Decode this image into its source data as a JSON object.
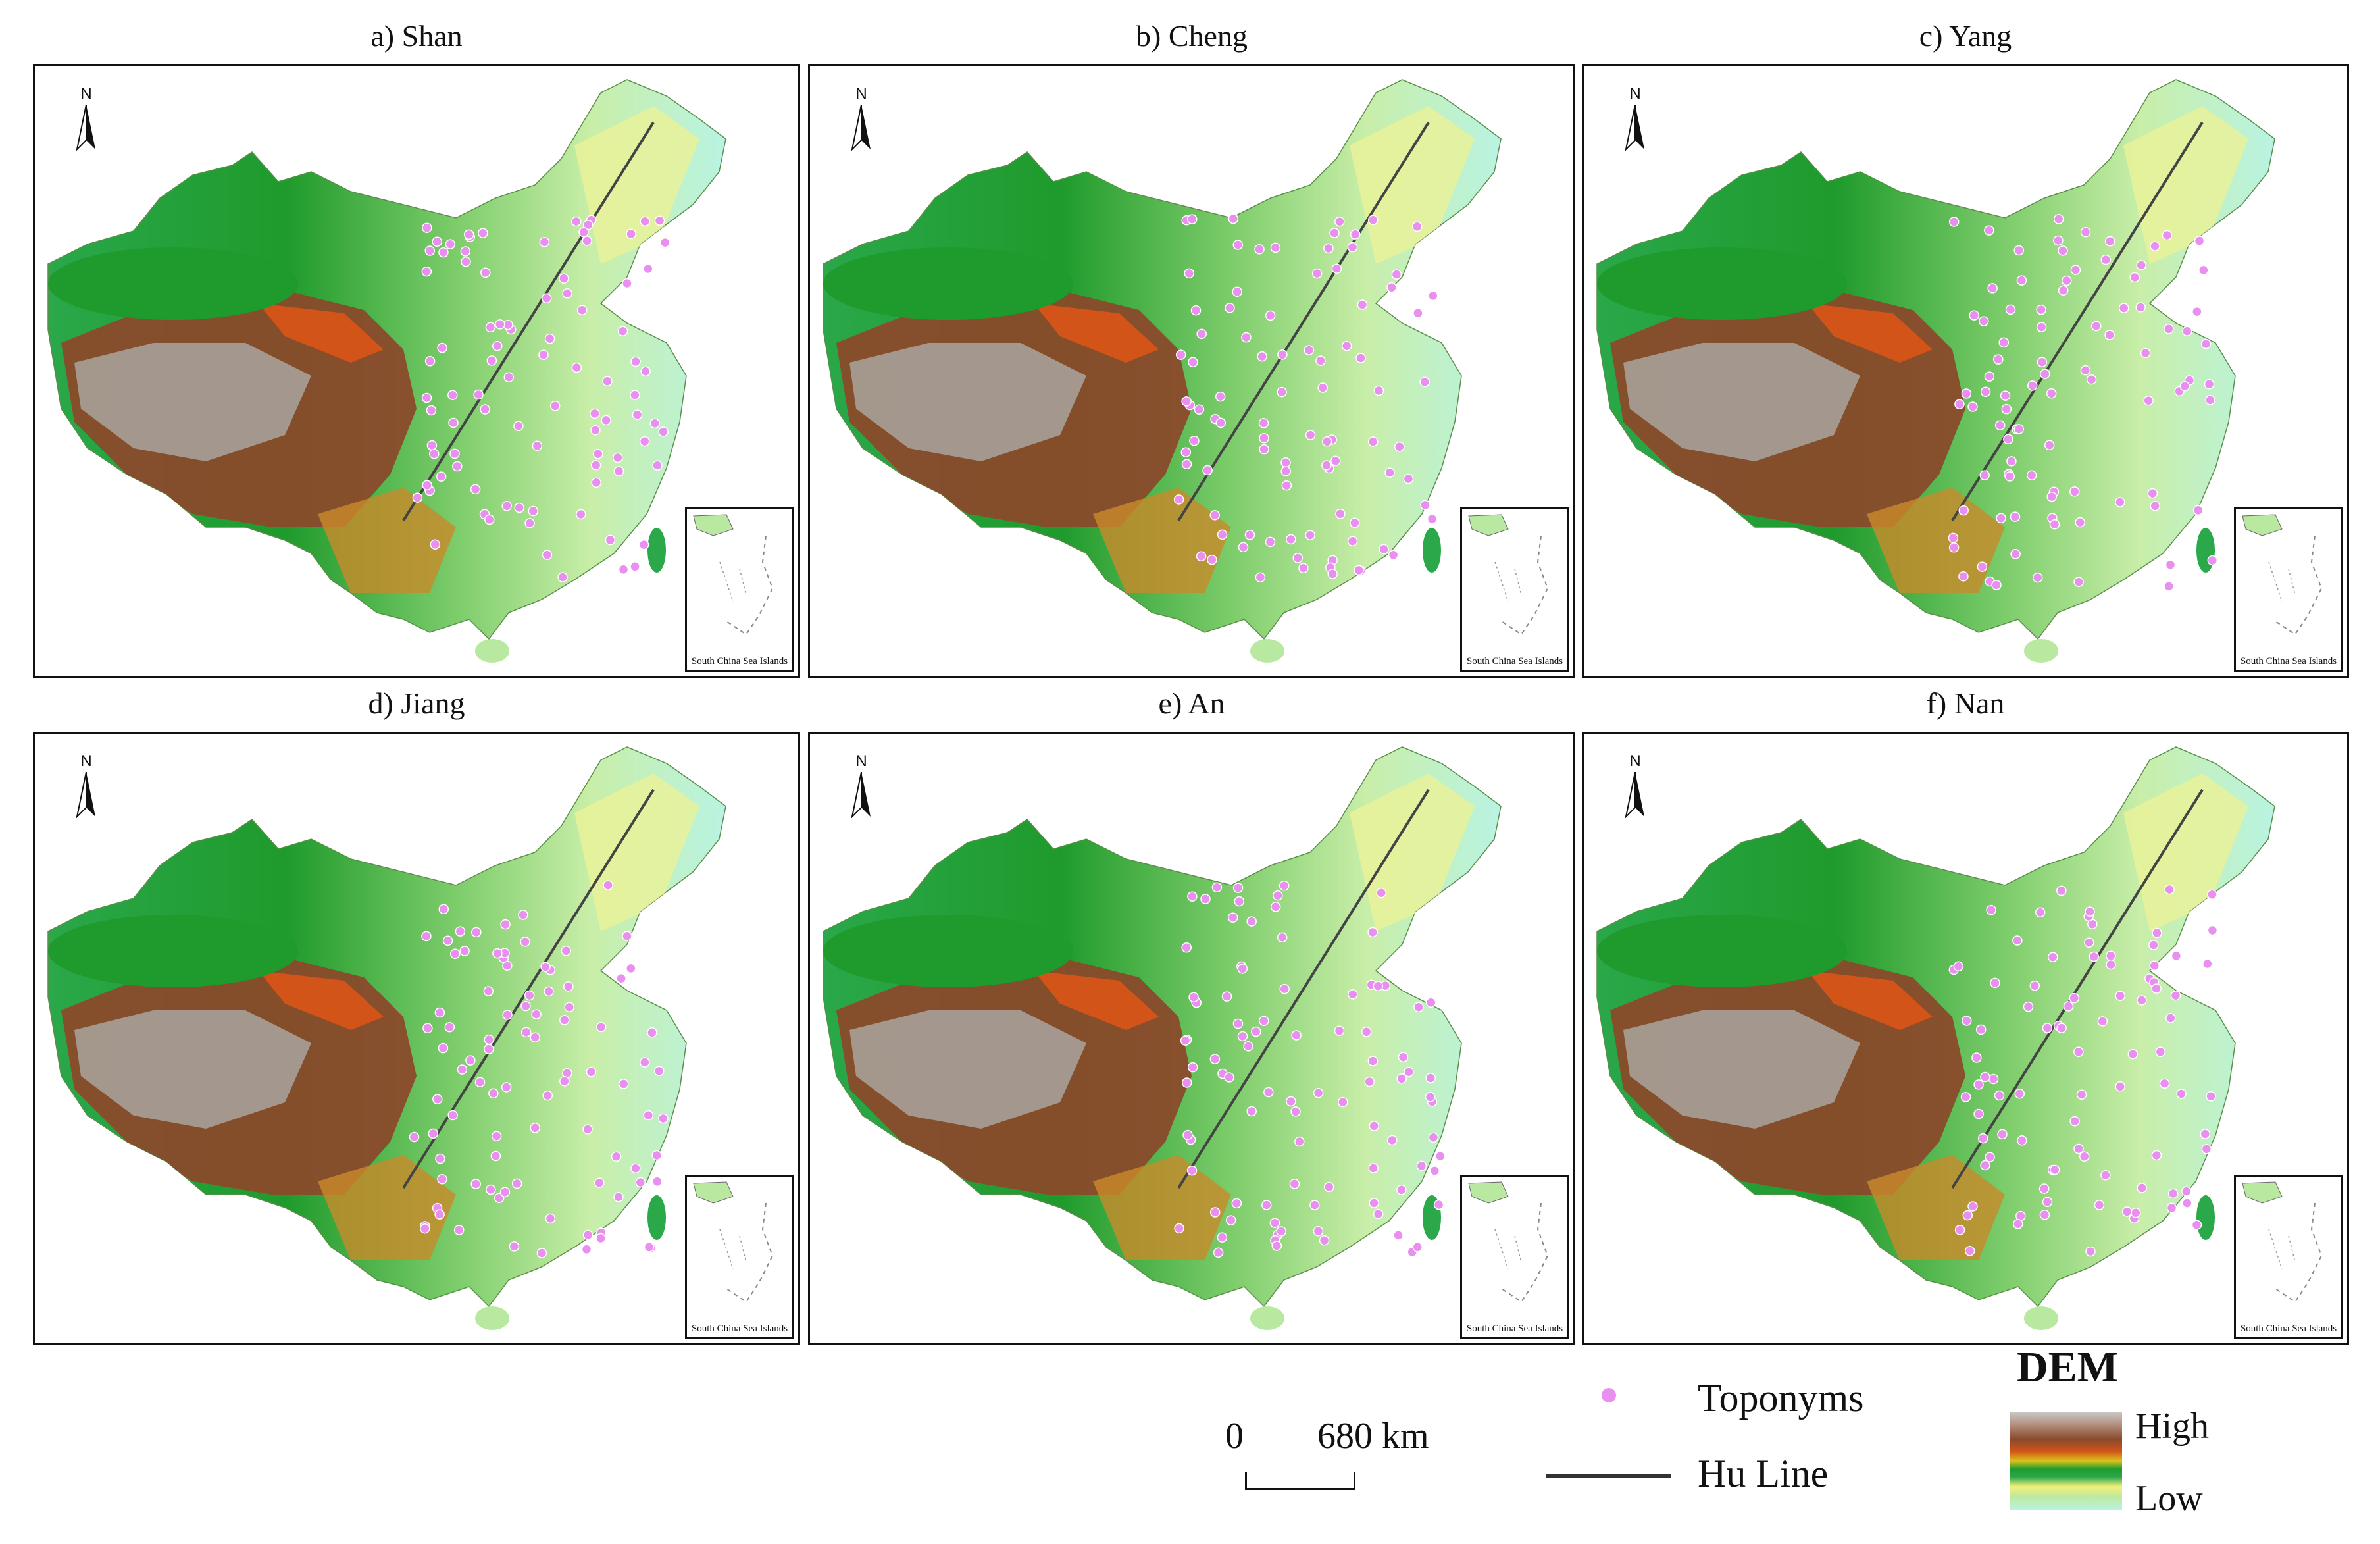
{
  "panels": [
    {
      "title": "a)  Shan"
    },
    {
      "title": "b)  Cheng"
    },
    {
      "title": "c)  Yang"
    },
    {
      "title": "d)  Jiang"
    },
    {
      "title": "e)  An"
    },
    {
      "title": "f)  Nan"
    }
  ],
  "north_arrow_label": "N",
  "inset_label": "South China Sea Islands",
  "scale_bar": {
    "zero": "0",
    "max": "680 km"
  },
  "legend": {
    "toponyms_label": "Toponyms",
    "hu_line_label": "Hu Line",
    "dem_title": "DEM",
    "dem_high": "High",
    "dem_low": "Low"
  },
  "colors": {
    "toponym_point": "#e98ff0",
    "hu_line": "#444444",
    "dem_high": "#8a4a2b",
    "dem_mid": "#1f9a2c",
    "dem_low": "#b9f3e2"
  }
}
